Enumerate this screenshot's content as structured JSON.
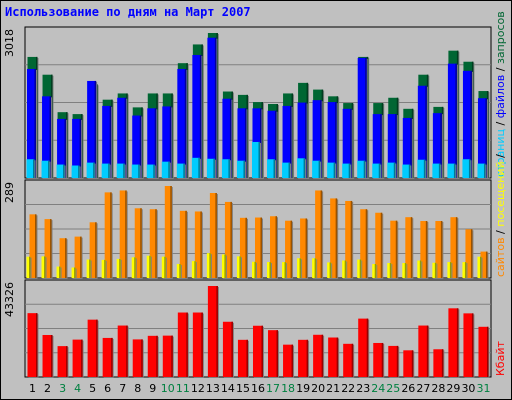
{
  "title": "Использование по дням на Март 2007",
  "chart_data": [
    {
      "type": "bar",
      "ymax_label": "3018",
      "ylim": [
        0,
        3018
      ],
      "x": [
        "1",
        "2",
        "3",
        "4",
        "5",
        "6",
        "7",
        "8",
        "9",
        "10",
        "11",
        "12",
        "13",
        "14",
        "15",
        "16",
        "17",
        "18",
        "19",
        "20",
        "21",
        "22",
        "23",
        "24",
        "25",
        "26",
        "27",
        "28",
        "29",
        "30",
        "31"
      ],
      "weekend_days": [
        "3",
        "4",
        "10",
        "11",
        "17",
        "18",
        "24",
        "25",
        "31"
      ],
      "series": [
        {
          "name": "запросов",
          "color": "#006633",
          "values": [
            2520,
            2150,
            1370,
            1330,
            1950,
            1630,
            1760,
            1470,
            1760,
            1760,
            2390,
            2780,
            3018,
            1800,
            1730,
            1580,
            1540,
            1760,
            1980,
            1840,
            1700,
            1560,
            2520,
            1560,
            1670,
            1440,
            2150,
            1480,
            2650,
            2420,
            1810
          ]
        },
        {
          "name": "файлов",
          "color": "#0000ff",
          "values": [
            2270,
            1700,
            1230,
            1230,
            2020,
            1500,
            1670,
            1300,
            1450,
            1490,
            2270,
            2560,
            2920,
            1650,
            1450,
            1450,
            1400,
            1500,
            1570,
            1620,
            1580,
            1440,
            2500,
            1330,
            1330,
            1250,
            1920,
            1350,
            2380,
            2230,
            1660
          ]
        },
        {
          "name": "страниц",
          "color": "#00ccff",
          "values": [
            390,
            360,
            280,
            260,
            320,
            300,
            300,
            280,
            280,
            340,
            300,
            420,
            400,
            390,
            360,
            750,
            390,
            320,
            410,
            360,
            320,
            300,
            360,
            300,
            320,
            280,
            380,
            300,
            300,
            390,
            300
          ]
        }
      ]
    },
    {
      "type": "bar",
      "ymax_label": "289",
      "ylim": [
        0,
        289
      ],
      "series": [
        {
          "name": "сайтов",
          "color": "#ff8800",
          "values": [
            200,
            185,
            125,
            130,
            175,
            269,
            275,
            219,
            216,
            289,
            211,
            209,
            267,
            239,
            189,
            190,
            194,
            180,
            187,
            275,
            250,
            242,
            216,
            205,
            180,
            191,
            179,
            179,
            191,
            153,
            83
          ]
        },
        {
          "name": "посещений",
          "color": "#ffff00",
          "values": [
            67,
            68,
            36,
            33,
            58,
            57,
            60,
            65,
            70,
            67,
            44,
            53,
            78,
            74,
            68,
            51,
            50,
            50,
            62,
            62,
            49,
            55,
            58,
            44,
            47,
            47,
            55,
            48,
            50,
            50,
            67
          ]
        }
      ]
    },
    {
      "type": "bar",
      "ymax_label": "43326",
      "ylim": [
        0,
        43326
      ],
      "series": [
        {
          "name": "Кбайт",
          "color": "#ff0000",
          "values": [
            30400,
            20000,
            14700,
            17800,
            27300,
            18600,
            24500,
            17900,
            19600,
            19700,
            30700,
            30700,
            43326,
            26300,
            17700,
            24400,
            22300,
            15400,
            17700,
            20100,
            18800,
            15800,
            27800,
            16200,
            14800,
            12700,
            24500,
            13200,
            32700,
            30300,
            23900
          ]
        }
      ]
    }
  ]
}
